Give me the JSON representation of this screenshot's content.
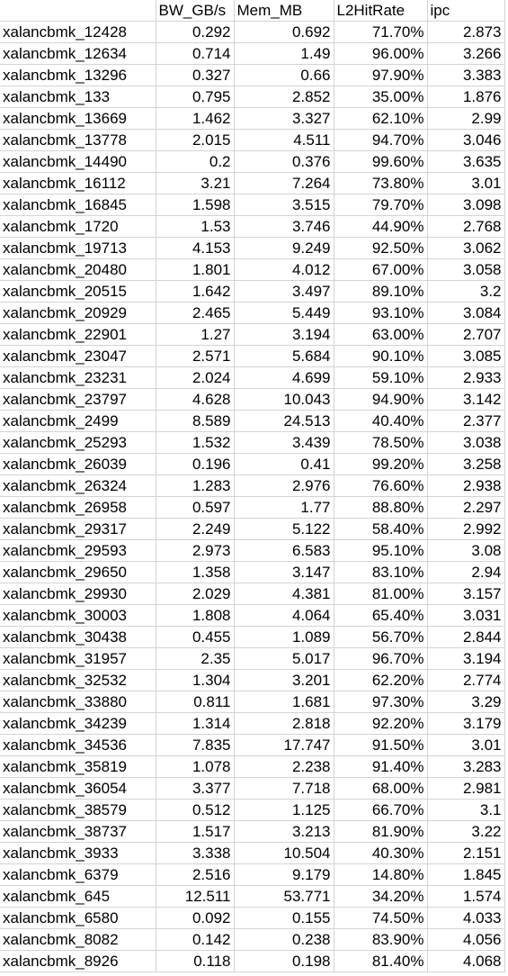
{
  "header": [
    "",
    "BW_GB/s",
    "Mem_MB",
    "L2HitRate",
    "ipc"
  ],
  "rows": [
    [
      "xalancbmk_12428",
      "0.292",
      "0.692",
      "71.70%",
      "2.873"
    ],
    [
      "xalancbmk_12634",
      "0.714",
      "1.49",
      "96.00%",
      "3.266"
    ],
    [
      "xalancbmk_13296",
      "0.327",
      "0.66",
      "97.90%",
      "3.383"
    ],
    [
      "xalancbmk_133",
      "0.795",
      "2.852",
      "35.00%",
      "1.876"
    ],
    [
      "xalancbmk_13669",
      "1.462",
      "3.327",
      "62.10%",
      "2.99"
    ],
    [
      "xalancbmk_13778",
      "2.015",
      "4.511",
      "94.70%",
      "3.046"
    ],
    [
      "xalancbmk_14490",
      "0.2",
      "0.376",
      "99.60%",
      "3.635"
    ],
    [
      "xalancbmk_16112",
      "3.21",
      "7.264",
      "73.80%",
      "3.01"
    ],
    [
      "xalancbmk_16845",
      "1.598",
      "3.515",
      "79.70%",
      "3.098"
    ],
    [
      "xalancbmk_1720",
      "1.53",
      "3.746",
      "44.90%",
      "2.768"
    ],
    [
      "xalancbmk_19713",
      "4.153",
      "9.249",
      "92.50%",
      "3.062"
    ],
    [
      "xalancbmk_20480",
      "1.801",
      "4.012",
      "67.00%",
      "3.058"
    ],
    [
      "xalancbmk_20515",
      "1.642",
      "3.497",
      "89.10%",
      "3.2"
    ],
    [
      "xalancbmk_20929",
      "2.465",
      "5.449",
      "93.10%",
      "3.084"
    ],
    [
      "xalancbmk_22901",
      "1.27",
      "3.194",
      "63.00%",
      "2.707"
    ],
    [
      "xalancbmk_23047",
      "2.571",
      "5.684",
      "90.10%",
      "3.085"
    ],
    [
      "xalancbmk_23231",
      "2.024",
      "4.699",
      "59.10%",
      "2.933"
    ],
    [
      "xalancbmk_23797",
      "4.628",
      "10.043",
      "94.90%",
      "3.142"
    ],
    [
      "xalancbmk_2499",
      "8.589",
      "24.513",
      "40.40%",
      "2.377"
    ],
    [
      "xalancbmk_25293",
      "1.532",
      "3.439",
      "78.50%",
      "3.038"
    ],
    [
      "xalancbmk_26039",
      "0.196",
      "0.41",
      "99.20%",
      "3.258"
    ],
    [
      "xalancbmk_26324",
      "1.283",
      "2.976",
      "76.60%",
      "2.938"
    ],
    [
      "xalancbmk_26958",
      "0.597",
      "1.77",
      "88.80%",
      "2.297"
    ],
    [
      "xalancbmk_29317",
      "2.249",
      "5.122",
      "58.40%",
      "2.992"
    ],
    [
      "xalancbmk_29593",
      "2.973",
      "6.583",
      "95.10%",
      "3.08"
    ],
    [
      "xalancbmk_29650",
      "1.358",
      "3.147",
      "83.10%",
      "2.94"
    ],
    [
      "xalancbmk_29930",
      "2.029",
      "4.381",
      "81.00%",
      "3.157"
    ],
    [
      "xalancbmk_30003",
      "1.808",
      "4.064",
      "65.40%",
      "3.031"
    ],
    [
      "xalancbmk_30438",
      "0.455",
      "1.089",
      "56.70%",
      "2.844"
    ],
    [
      "xalancbmk_31957",
      "2.35",
      "5.017",
      "96.70%",
      "3.194"
    ],
    [
      "xalancbmk_32532",
      "1.304",
      "3.201",
      "62.20%",
      "2.774"
    ],
    [
      "xalancbmk_33880",
      "0.811",
      "1.681",
      "97.30%",
      "3.29"
    ],
    [
      "xalancbmk_34239",
      "1.314",
      "2.818",
      "92.20%",
      "3.179"
    ],
    [
      "xalancbmk_34536",
      "7.835",
      "17.747",
      "91.50%",
      "3.01"
    ],
    [
      "xalancbmk_35819",
      "1.078",
      "2.238",
      "91.40%",
      "3.283"
    ],
    [
      "xalancbmk_36054",
      "3.377",
      "7.718",
      "68.00%",
      "2.981"
    ],
    [
      "xalancbmk_38579",
      "0.512",
      "1.125",
      "66.70%",
      "3.1"
    ],
    [
      "xalancbmk_38737",
      "1.517",
      "3.213",
      "81.90%",
      "3.22"
    ],
    [
      "xalancbmk_3933",
      "3.338",
      "10.504",
      "40.30%",
      "2.151"
    ],
    [
      "xalancbmk_6379",
      "2.516",
      "9.179",
      "14.80%",
      "1.845"
    ],
    [
      "xalancbmk_645",
      "12.511",
      "53.771",
      "34.20%",
      "1.574"
    ],
    [
      "xalancbmk_6580",
      "0.092",
      "0.155",
      "74.50%",
      "4.033"
    ],
    [
      "xalancbmk_8082",
      "0.142",
      "0.238",
      "83.90%",
      "4.056"
    ],
    [
      "xalancbmk_8926",
      "0.118",
      "0.198",
      "81.40%",
      "4.068"
    ]
  ]
}
